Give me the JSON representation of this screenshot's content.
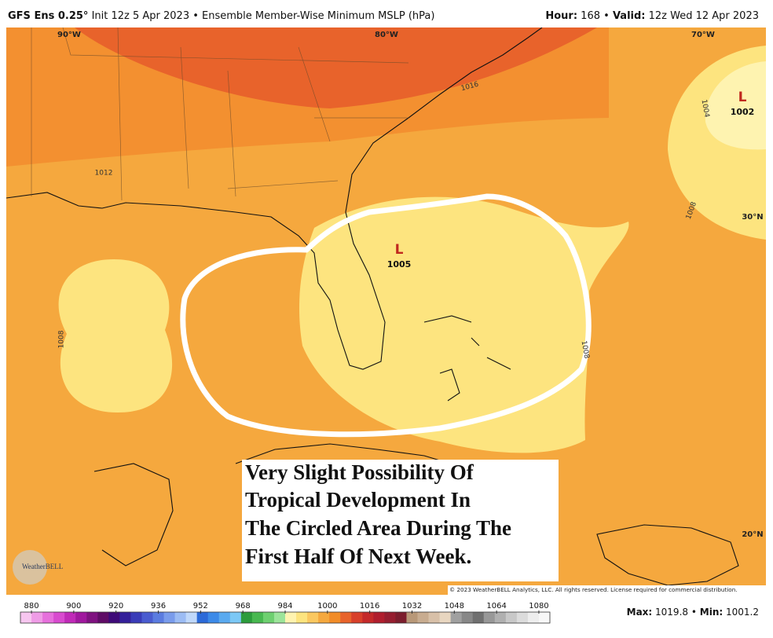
{
  "header": {
    "model": "GFS Ens 0.25°",
    "info": "Init 12z 5 Apr 2023 • Ensemble Member-Wise Minimum MSLP (hPa)",
    "hour_label": "Hour:",
    "hour": 168,
    "separator": "•",
    "valid_label": "Valid:",
    "valid": "12z Wed 12 Apr 2023"
  },
  "map": {
    "graticule": [
      "90°W",
      "80°W",
      "70°W",
      "30°N",
      "20°N"
    ],
    "lows": [
      {
        "symbol": "L",
        "pressure": 1005
      },
      {
        "symbol": "L",
        "pressure": 1002
      }
    ],
    "contour_labels": [
      1016,
      1012,
      1004,
      1008,
      1008,
      1008
    ],
    "annotation": [
      "Very Slight Possibility Of",
      "Tropical Development In",
      "The Circled Area During The",
      "First Half Of Next Week."
    ],
    "logo": "WeatherBELL",
    "copyright": "© 2023 WeatherBELL Analytics, LLC. All rights reserved. License required for commercial distribution."
  },
  "colorbar": {
    "ticks": [
      880,
      900,
      920,
      936,
      952,
      968,
      984,
      1000,
      1016,
      1032,
      1048,
      1064,
      1080
    ],
    "colors": [
      "#f7c6f0",
      "#ef9ce6",
      "#e670dc",
      "#d84bcf",
      "#c02ab8",
      "#a0189e",
      "#7f1280",
      "#5f0c66",
      "#3e0a78",
      "#34209a",
      "#3a3cb8",
      "#4a5cd0",
      "#5b7ce0",
      "#7a9cec",
      "#9cbcf4",
      "#c0d8fa",
      "#2c6ad8",
      "#3c8ae8",
      "#5aaaf0",
      "#7cc8f6",
      "#2c9c3c",
      "#48b850",
      "#6ed070",
      "#9ce49a",
      "#fff3b0",
      "#fde47f",
      "#fbc860",
      "#f5a83e",
      "#f28c28",
      "#e8632b",
      "#d8402a",
      "#c42a2a",
      "#b01e2e",
      "#961e30",
      "#7c1e2e",
      "#b89878",
      "#c8ac90",
      "#d8c0a8",
      "#e8d6c0",
      "#a0a0a0",
      "#888888",
      "#707070",
      "#989898",
      "#b0b0b0",
      "#c8c8c8",
      "#dcdcdc",
      "#eeeeee",
      "#f8f8f8"
    ]
  },
  "stats": [
    {
      "label": "Max:",
      "value": 1019.8
    },
    {
      "label": "Min:",
      "value": 1001.2
    }
  ]
}
